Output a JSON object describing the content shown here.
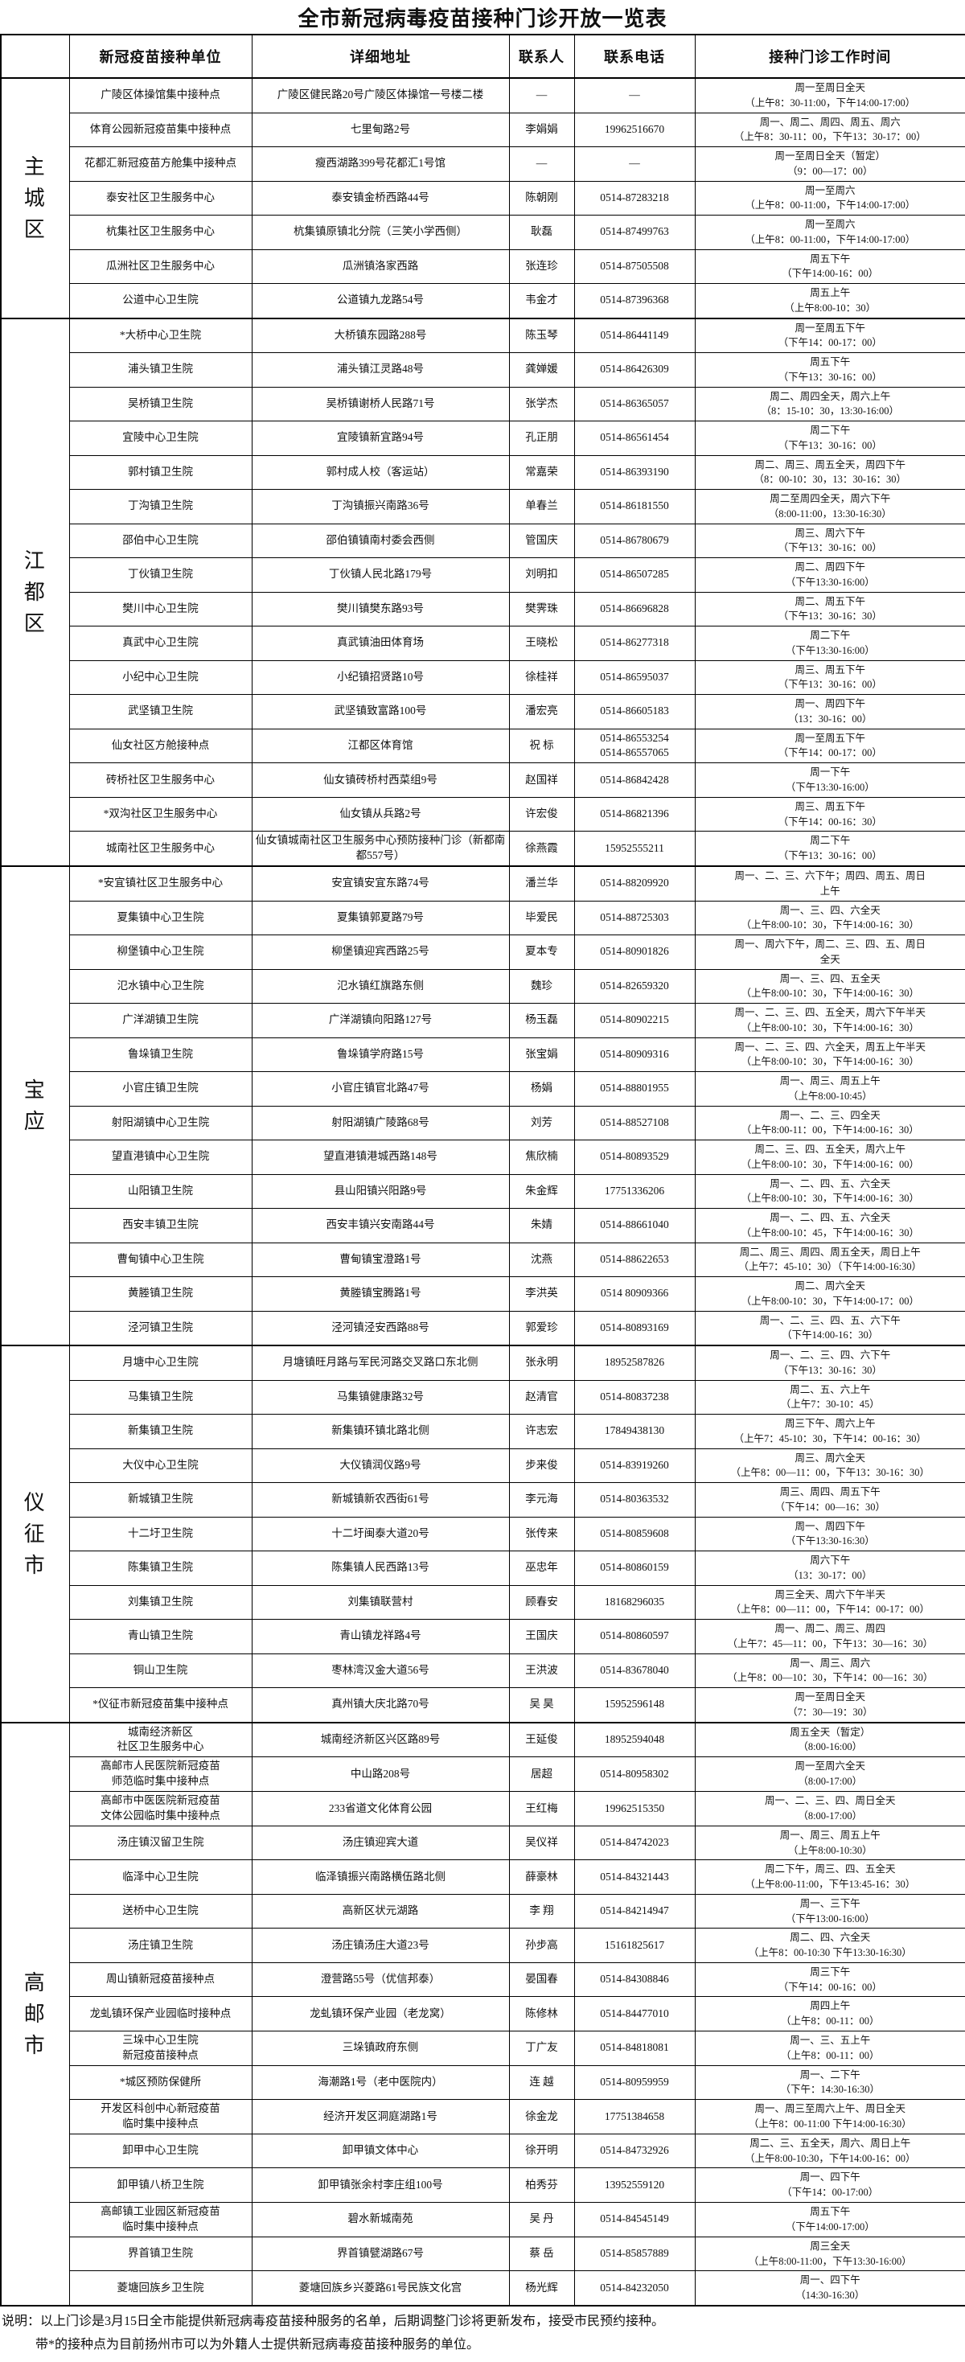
{
  "title": "全市新冠病毒疫苗接种门诊开放一览表",
  "columns": [
    "新冠疫苗接种单位",
    "详细地址",
    "联系人",
    "联系电话",
    "接种门诊工作时间"
  ],
  "corner_header": "",
  "sections": [
    {
      "region": "主城区",
      "rows": [
        {
          "unit": "广陵区体操馆集中接种点",
          "address": "广陵区健民路20号广陵区体操馆一号楼二楼",
          "contact": "—",
          "phone": "—",
          "hours": "周一至周日全天\n（上午8：30-11:00，下午14:00-17:00）"
        },
        {
          "unit": "体育公园新冠疫苗集中接种点",
          "address": "七里甸路2号",
          "contact": "李娟娟",
          "phone": "19962516670",
          "hours": "周一、周二、周四、周五、周六\n（上午8：30-11：00，下午13：30-17：00）"
        },
        {
          "unit": "花都汇新冠疫苗方舱集中接种点",
          "address": "瘦西湖路399号花都汇1号馆",
          "contact": "—",
          "phone": "—",
          "hours": "周一至周日全天（暂定）\n（9：00—17：00）"
        },
        {
          "unit": "泰安社区卫生服务中心",
          "address": "泰安镇金桥西路44号",
          "contact": "陈朝刚",
          "phone": "0514-87283218",
          "hours": "周一至周六\n（上午8：00-11:00，下午14:00-17:00）"
        },
        {
          "unit": "杭集社区卫生服务中心",
          "address": "杭集镇原镇北分院（三笑小学西侧）",
          "contact": "耿磊",
          "phone": "0514-87499763",
          "hours": "周一至周六\n（上午8：00-11:00，下午14:00-17:00）"
        },
        {
          "unit": "瓜洲社区卫生服务中心",
          "address": "瓜洲镇洛家西路",
          "contact": "张连珍",
          "phone": "0514-87505508",
          "hours": "周五下午\n（下午14:00-16：00）"
        },
        {
          "unit": "公道中心卫生院",
          "address": "公道镇九龙路54号",
          "contact": "韦金才",
          "phone": "0514-87396368",
          "hours": "周五上午\n（上午8:00-10：30）"
        }
      ]
    },
    {
      "region": "江都区",
      "rows": [
        {
          "unit": "*大桥中心卫生院",
          "address": "大桥镇东园路288号",
          "contact": "陈玉琴",
          "phone": "0514-86441149",
          "hours": "周一至周五下午\n（下午14：00-17：00）"
        },
        {
          "unit": "浦头镇卫生院",
          "address": "浦头镇江灵路48号",
          "contact": "龚婵媛",
          "phone": "0514-86426309",
          "hours": "周五下午\n（下午13：30-16：00）"
        },
        {
          "unit": "吴桥镇卫生院",
          "address": "吴桥镇谢桥人民路71号",
          "contact": "张学杰",
          "phone": "0514-86365057",
          "hours": "周二、周四全天，周六上午\n（8：15-10：30，13:30-16:00）"
        },
        {
          "unit": "宜陵中心卫生院",
          "address": "宜陵镇新宜路94号",
          "contact": "孔正朋",
          "phone": "0514-86561454",
          "hours": "周二下午\n（下午13：30-16：00）"
        },
        {
          "unit": "郭村镇卫生院",
          "address": "郭村成人校（客运站）",
          "contact": "常嘉荣",
          "phone": "0514-86393190",
          "hours": "周二、周三、周五全天，周四下午\n（8：00-10：30，13：30-16：30）"
        },
        {
          "unit": "丁沟镇卫生院",
          "address": "丁沟镇振兴南路36号",
          "contact": "单春兰",
          "phone": "0514-86181550",
          "hours": "周二至周四全天，周六下午\n（8:00-11:00，13:30-16:30）"
        },
        {
          "unit": "邵伯中心卫生院",
          "address": "邵伯镇镇南村委会西侧",
          "contact": "管国庆",
          "phone": "0514-86780679",
          "hours": "周三、周六下午\n（下午13：30-16：00）"
        },
        {
          "unit": "丁伙镇卫生院",
          "address": "丁伙镇人民北路179号",
          "contact": "刘明扣",
          "phone": "0514-86507285",
          "hours": "周二、周四下午\n（下午13:30-16:00）"
        },
        {
          "unit": "樊川中心卫生院",
          "address": "樊川镇樊东路93号",
          "contact": "樊霁珠",
          "phone": "0514-86696828",
          "hours": "周二、周五下午\n（下午13：30-16：30）"
        },
        {
          "unit": "真武中心卫生院",
          "address": "真武镇油田体育场",
          "contact": "王晓松",
          "phone": "0514-86277318",
          "hours": "周二下午\n（下午13:30-16:00）"
        },
        {
          "unit": "小纪中心卫生院",
          "address": "小纪镇招贤路10号",
          "contact": "徐桂祥",
          "phone": "0514-86595037",
          "hours": "周三、周五下午\n（下午13：30-16：00）"
        },
        {
          "unit": "武坚镇卫生院",
          "address": "武坚镇致富路100号",
          "contact": "潘宏亮",
          "phone": "0514-86605183",
          "hours": "周一、周四下午\n（13：30-16：00）"
        },
        {
          "unit": "仙女社区方舱接种点",
          "address": "江都区体育馆",
          "contact": "祝  标",
          "phone": "0514-86553254\n0514-86557065",
          "hours": "周一至周五下午\n（下午14：00-17：00）"
        },
        {
          "unit": "砖桥社区卫生服务中心",
          "address": "仙女镇砖桥村西菜组9号",
          "contact": "赵国祥",
          "phone": "0514-86842428",
          "hours": "周一下午\n（下午13:30-16:00）"
        },
        {
          "unit": "*双沟社区卫生服务中心",
          "address": "仙女镇从兵路2号",
          "contact": "许宏俊",
          "phone": "0514-86821396",
          "hours": "周三、周五下午\n（下午14：00-16：30）"
        },
        {
          "unit": "城南社区卫生服务中心",
          "address": "仙女镇城南社区卫生服务中心预防接种门诊（新都南都557号）",
          "contact": "徐燕霞",
          "phone": "15952555211",
          "hours": "周二下午\n（下午13：30-16：00）"
        }
      ]
    },
    {
      "region": "宝应",
      "rows": [
        {
          "unit": "*安宜镇社区卫生服务中心",
          "address": "安宜镇安宜东路74号",
          "contact": "潘兰华",
          "phone": "0514-88209920",
          "hours": "周一、二、三、六下午；周四、周五、周日\n上午"
        },
        {
          "unit": "夏集镇中心卫生院",
          "address": "夏集镇郭夏路79号",
          "contact": "毕爱民",
          "phone": "0514-88725303",
          "hours": "周一、三、四、六全天\n（上午8:00-10：30，下午14:00-16：30）"
        },
        {
          "unit": "柳堡镇中心卫生院",
          "address": "柳堡镇迎宾西路25号",
          "contact": "夏本专",
          "phone": "0514-80901826",
          "hours": "周一、周六下午，周二、三、四、五、周日\n全天"
        },
        {
          "unit": "氾水镇中心卫生院",
          "address": "氾水镇红旗路东侧",
          "contact": "魏珍",
          "phone": "0514-82659320",
          "hours": "周一、三、四、五全天\n（上午8:00-10：30，下午14:00-16：30）"
        },
        {
          "unit": "广洋湖镇卫生院",
          "address": "广洋湖镇向阳路127号",
          "contact": "杨玉磊",
          "phone": "0514-80902215",
          "hours": "周一、二、三、四、五全天，周六下午半天\n（上午8:00-10：30，下午14:00-16：30）"
        },
        {
          "unit": "鲁垛镇卫生院",
          "address": "鲁垛镇学府路15号",
          "contact": "张宝娟",
          "phone": "0514-80909316",
          "hours": "周一、二、三、四、六全天，周五上午半天\n（上午8:00-10：30，下午14:00-16：30）"
        },
        {
          "unit": "小官庄镇卫生院",
          "address": "小官庄镇官北路47号",
          "contact": "杨娟",
          "phone": "0514-88801955",
          "hours": "周一、周三、周五上午\n（上午8:00-10:45）"
        },
        {
          "unit": "射阳湖镇中心卫生院",
          "address": "射阳湖镇广陵路68号",
          "contact": "刘芳",
          "phone": "0514-88527108",
          "hours": "周一、二、三、四全天\n（上午8:00-11：00，下午14:00-16：30）"
        },
        {
          "unit": "望直港镇中心卫生院",
          "address": "望直港镇港城西路148号",
          "contact": "焦欣楠",
          "phone": "0514-80893529",
          "hours": "周二、三、四、五全天，周六上午\n（上午8:00-10：30，下午14:00-16：00）"
        },
        {
          "unit": "山阳镇卫生院",
          "address": "县山阳镇兴阳路9号",
          "contact": "朱金辉",
          "phone": "17751336206",
          "hours": "周一、二、四、五、六全天\n（上午8:00-10：30，下午14:00-16：30）"
        },
        {
          "unit": "西安丰镇卫生院",
          "address": "西安丰镇兴安南路44号",
          "contact": "朱婧",
          "phone": "0514-88661040",
          "hours": "周一、二、四、五、六全天\n（上午8:00-10：45，下午14:00-16：30）"
        },
        {
          "unit": "曹甸镇中心卫生院",
          "address": "曹甸镇宝澄路1号",
          "contact": "沈燕",
          "phone": "0514-88622653",
          "hours": "周二、周三、周四、周五全天，周日上午\n（上午7：45-10：30）（下午14:00-16:30）"
        },
        {
          "unit": "黄塍镇卫生院",
          "address": "黄塍镇宝腾路1号",
          "contact": "李洪英",
          "phone": "0514 80909366",
          "hours": "周二、周六全天\n（上午8:00-10：30，下午14:00-17：00）"
        },
        {
          "unit": "泾河镇卫生院",
          "address": "泾河镇泾安西路88号",
          "contact": "郭爱珍",
          "phone": "0514-80893169",
          "hours": "周一、二、三、四、五、六下午\n（下午14:00-16：30）"
        }
      ]
    },
    {
      "region": "仪征市",
      "rows": [
        {
          "unit": "月塘中心卫生院",
          "address": "月塘镇旺月路与军民河路交叉路口东北侧",
          "contact": "张永明",
          "phone": "18952587826",
          "hours": "周一、二、三、四、六下午\n（下午13：30-16：30）"
        },
        {
          "unit": "马集镇卫生院",
          "address": "马集镇健康路32号",
          "contact": "赵清官",
          "phone": "0514-80837238",
          "hours": "周二、五、六上午\n（上午7：30-10：45）"
        },
        {
          "unit": "新集镇卫生院",
          "address": "新集镇环镇北路北侧",
          "contact": "许志宏",
          "phone": "17849438130",
          "hours": "周三下午、周六上午\n（上午7：45-10：30，下午14：00-16：30）"
        },
        {
          "unit": "大仪中心卫生院",
          "address": "大仪镇润仪路9号",
          "contact": "步来俊",
          "phone": "0514-83919260",
          "hours": "周三、周六全天\n（上午8：00—11：00，下午13：30-16：30）"
        },
        {
          "unit": "新城镇卫生院",
          "address": "新城镇新农西街61号",
          "contact": "李元海",
          "phone": "0514-80363532",
          "hours": "周三、周四、周五下午\n（下午14：00—16：30）"
        },
        {
          "unit": "十二圩卫生院",
          "address": "十二圩闽泰大道20号",
          "contact": "张传来",
          "phone": "0514-80859608",
          "hours": "周一、周四下午\n（下午13:30-16:30）"
        },
        {
          "unit": "陈集镇卫生院",
          "address": "陈集镇人民西路13号",
          "contact": "巫忠年",
          "phone": "0514-80860159",
          "hours": "周六下午\n（13：30-17：00）"
        },
        {
          "unit": "刘集镇卫生院",
          "address": "刘集镇联营村",
          "contact": "顾春安",
          "phone": "18168296035",
          "hours": "周三全天、周六下午半天\n（上午8：00—11：00，下午14：00-17：00）"
        },
        {
          "unit": "青山镇卫生院",
          "address": "青山镇龙祥路4号",
          "contact": "王国庆",
          "phone": "0514-80860597",
          "hours": "周一、周二、周三、周四\n（上午7：45—11：00，下午13：30—16：30）"
        },
        {
          "unit": "铜山卫生院",
          "address": "枣林湾汉金大道56号",
          "contact": "王洪波",
          "phone": "0514-83678040",
          "hours": "周一、周三、周六\n（上午8：00—10：30，下午14：00—16：30）"
        },
        {
          "unit": "*仪征市新冠疫苗集中接种点",
          "address": "真州镇大庆北路70号",
          "contact": "吴  昊",
          "phone": "15952596148",
          "hours": "周一至周日全天\n（7：30—19：30）"
        }
      ]
    },
    {
      "region": "高邮市",
      "rows": [
        {
          "unit": "城南经济新区\n社区卫生服务中心",
          "address": "城南经济新区兴区路89号",
          "contact": "王延俊",
          "phone": "18952594048",
          "hours": "周五全天（暂定）\n（8:00-16:00）"
        },
        {
          "unit": "高邮市人民医院新冠疫苗\n师范临时集中接种点",
          "address": "中山路208号",
          "contact": "居超",
          "phone": "0514-80958302",
          "hours": "周一至周六全天\n（8:00-17:00）"
        },
        {
          "unit": "高邮市中医医院新冠疫苗\n文体公园临时集中接种点",
          "address": "233省道文化体育公园",
          "contact": "王红梅",
          "phone": "19962515350",
          "hours": "周一、二、三、四、周日全天\n（8:00-17:00）"
        },
        {
          "unit": "汤庄镇汉留卫生院",
          "address": "汤庄镇迎宾大道",
          "contact": "吴仪祥",
          "phone": "0514-84742023",
          "hours": "周一、周三、周五上午\n（上午8:00-10:30）"
        },
        {
          "unit": "临泽中心卫生院",
          "address": "临泽镇振兴南路横伍路北侧",
          "contact": "薛豪林",
          "phone": "0514-84321443",
          "hours": "周二下午，周三、四、五全天\n（上午8:00-11:00，下午13:45-16：30）"
        },
        {
          "unit": "送桥中心卫生院",
          "address": "高新区状元湖路",
          "contact": "李  翔",
          "phone": "0514-84214947",
          "hours": "周一、三下午\n（下午13:00-16:00）"
        },
        {
          "unit": "汤庄镇卫生院",
          "address": "汤庄镇汤庄大道23号",
          "contact": "孙步高",
          "phone": "15161825617",
          "hours": "周二、四、六全天\n（上午8：00-10:30 下午13:30-16:30）"
        },
        {
          "unit": "周山镇新冠疫苗接种点",
          "address": "澄营路55号（优信邦泰）",
          "contact": "晏国春",
          "phone": "0514-84308846",
          "hours": "周三下午\n（下午14：00-16：00）"
        },
        {
          "unit": "龙虬镇环保产业园临时接种点",
          "address": "龙虬镇环保产业园（老龙窝）",
          "contact": "陈修林",
          "phone": "0514-84477010",
          "hours": "周四上午\n（上午8：00-11：00）"
        },
        {
          "unit": "三垛中心卫生院\n新冠疫苗接种点",
          "address": "三垛镇政府东侧",
          "contact": "丁广友",
          "phone": "0514-84818081",
          "hours": "周一、三、五上午\n（上午8：00-11：00）"
        },
        {
          "unit": "*城区预防保健所",
          "address": "海潮路1号（老中医院内）",
          "contact": "连  越",
          "phone": "0514-80959959",
          "hours": "周一、二下午\n（下午：14:30-16:30）"
        },
        {
          "unit": "开发区科创中心新冠疫苗\n临时集中接种点",
          "address": "经济开发区洞庭湖路1号",
          "contact": "徐金龙",
          "phone": "17751384658",
          "hours": "周一、周三至周六上午、周日全天\n（上午8：00-11:00 下午14:00-16:30）"
        },
        {
          "unit": "卸甲中心卫生院",
          "address": "卸甲镇文体中心",
          "contact": "徐开明",
          "phone": "0514-84732926",
          "hours": "周二、三、五全天，周六、周日上午\n（上午8:00-10:30，下午14:00-16：00）"
        },
        {
          "unit": "卸甲镇八桥卫生院",
          "address": "卸甲镇张余村李庄组100号",
          "contact": "柏秀芬",
          "phone": "13952559120",
          "hours": "周一、四下午\n（下午14：00-17:00）"
        },
        {
          "unit": "高邮镇工业园区新冠疫苗\n临时集中接种点",
          "address": "碧水新城南苑",
          "contact": "吴  丹",
          "phone": "0514-84545149",
          "hours": "周五下午\n（下午14:00-17:00）"
        },
        {
          "unit": "界首镇卫生院",
          "address": "界首镇甓湖路67号",
          "contact": "蔡  岳",
          "phone": "0514-85857889",
          "hours": "周三全天\n（上午8:00-11:00，下午13:30-16:00）"
        },
        {
          "unit": "菱塘回族乡卫生院",
          "address": "菱塘回族乡兴菱路61号民族文化宫",
          "contact": "杨光辉",
          "phone": "0514-84232050",
          "hours": "周一、四下午\n（14:30-16:30）"
        }
      ]
    }
  ],
  "notes": [
    "说明：以上门诊是3月15日全市能提供新冠病毒疫苗接种服务的名单，后期调整门诊将更新发布，接受市民预约接种。",
    "带*的接种点为目前扬州市可以为外籍人士提供新冠病毒疫苗接种服务的单位。"
  ]
}
